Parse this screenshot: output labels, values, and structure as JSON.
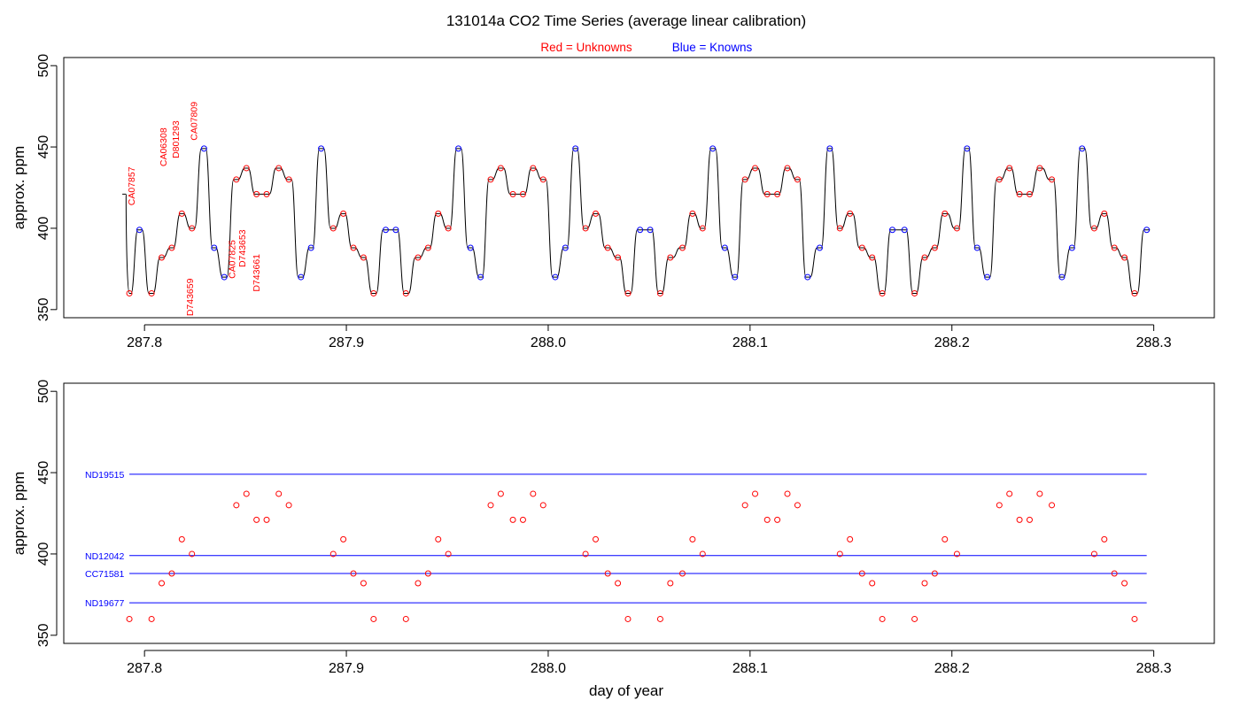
{
  "title": "131014a   CO2 Time Series (average linear calibration)",
  "legend": {
    "red_label": "Red = Unknowns",
    "blue_label": "Blue = Knowns",
    "red_color": "#ff0000",
    "blue_color": "#0000ff"
  },
  "colors": {
    "line": "#000000",
    "axis": "#000000"
  },
  "chart_data": [
    {
      "type": "line",
      "name": "top",
      "title": "",
      "xlabel": "",
      "ylabel": "approx. ppm",
      "xlim": [
        287.76,
        288.33
      ],
      "ylim": [
        345,
        505
      ],
      "x_ticks": [
        287.8,
        287.9,
        288.0,
        288.1,
        288.2,
        288.3
      ],
      "x_tick_labels": [
        "287.8",
        "287.9",
        "288.0",
        "288.1",
        "288.2",
        "288.3"
      ],
      "y_ticks": [
        350,
        400,
        450,
        500
      ],
      "y_tick_labels": [
        "350",
        "400",
        "450",
        "500"
      ],
      "trace_start": [
        287.789,
        421
      ],
      "steps": [
        {
          "x": 287.7925,
          "y": 360,
          "kind": "unknown"
        },
        {
          "x": 287.7975,
          "y": 399,
          "kind": "known"
        },
        {
          "x": 287.8035,
          "y": 360,
          "kind": "unknown"
        },
        {
          "x": 287.8085,
          "y": 382,
          "kind": "unknown"
        },
        {
          "x": 287.8135,
          "y": 388,
          "kind": "unknown"
        },
        {
          "x": 287.8185,
          "y": 409,
          "kind": "unknown"
        },
        {
          "x": 287.8235,
          "y": 400,
          "kind": "unknown"
        },
        {
          "x": 287.8295,
          "y": 449,
          "kind": "known"
        },
        {
          "x": 287.8345,
          "y": 388,
          "kind": "known"
        },
        {
          "x": 287.8395,
          "y": 370,
          "kind": "known"
        },
        {
          "x": 287.8455,
          "y": 430,
          "kind": "unknown"
        },
        {
          "x": 287.8505,
          "y": 437,
          "kind": "unknown"
        },
        {
          "x": 287.8555,
          "y": 421,
          "kind": "unknown"
        },
        {
          "x": 287.8605,
          "y": 421,
          "kind": "unknown"
        },
        {
          "x": 287.8665,
          "y": 437,
          "kind": "unknown"
        },
        {
          "x": 287.8715,
          "y": 430,
          "kind": "unknown"
        },
        {
          "x": 287.8775,
          "y": 370,
          "kind": "known"
        },
        {
          "x": 287.8825,
          "y": 388,
          "kind": "known"
        },
        {
          "x": 287.8875,
          "y": 449,
          "kind": "known"
        },
        {
          "x": 287.8935,
          "y": 400,
          "kind": "unknown"
        },
        {
          "x": 287.8985,
          "y": 409,
          "kind": "unknown"
        },
        {
          "x": 287.9035,
          "y": 388,
          "kind": "unknown"
        },
        {
          "x": 287.9085,
          "y": 382,
          "kind": "unknown"
        },
        {
          "x": 287.9135,
          "y": 360,
          "kind": "unknown"
        },
        {
          "x": 287.9195,
          "y": 399,
          "kind": "known"
        },
        {
          "x": 287.9245,
          "y": 399,
          "kind": "known"
        },
        {
          "x": 287.9295,
          "y": 360,
          "kind": "unknown"
        },
        {
          "x": 287.9355,
          "y": 382,
          "kind": "unknown"
        },
        {
          "x": 287.9405,
          "y": 388,
          "kind": "unknown"
        },
        {
          "x": 287.9455,
          "y": 409,
          "kind": "unknown"
        },
        {
          "x": 287.9505,
          "y": 400,
          "kind": "unknown"
        },
        {
          "x": 287.9555,
          "y": 449,
          "kind": "known"
        },
        {
          "x": 287.9615,
          "y": 388,
          "kind": "known"
        },
        {
          "x": 287.9665,
          "y": 370,
          "kind": "known"
        },
        {
          "x": 287.9715,
          "y": 430,
          "kind": "unknown"
        },
        {
          "x": 287.9765,
          "y": 437,
          "kind": "unknown"
        },
        {
          "x": 287.9825,
          "y": 421,
          "kind": "unknown"
        },
        {
          "x": 287.9875,
          "y": 421,
          "kind": "unknown"
        },
        {
          "x": 287.9925,
          "y": 437,
          "kind": "unknown"
        },
        {
          "x": 287.9975,
          "y": 430,
          "kind": "unknown"
        },
        {
          "x": 288.0035,
          "y": 370,
          "kind": "known"
        },
        {
          "x": 288.0085,
          "y": 388,
          "kind": "known"
        },
        {
          "x": 288.0135,
          "y": 449,
          "kind": "known"
        },
        {
          "x": 288.0185,
          "y": 400,
          "kind": "unknown"
        },
        {
          "x": 288.0235,
          "y": 409,
          "kind": "unknown"
        },
        {
          "x": 288.0295,
          "y": 388,
          "kind": "unknown"
        },
        {
          "x": 288.0345,
          "y": 382,
          "kind": "unknown"
        },
        {
          "x": 288.0395,
          "y": 360,
          "kind": "unknown"
        },
        {
          "x": 288.0455,
          "y": 399,
          "kind": "known"
        },
        {
          "x": 288.0505,
          "y": 399,
          "kind": "known"
        },
        {
          "x": 288.0555,
          "y": 360,
          "kind": "unknown"
        },
        {
          "x": 288.0605,
          "y": 382,
          "kind": "unknown"
        },
        {
          "x": 288.0665,
          "y": 388,
          "kind": "unknown"
        },
        {
          "x": 288.0715,
          "y": 409,
          "kind": "unknown"
        },
        {
          "x": 288.0765,
          "y": 400,
          "kind": "unknown"
        },
        {
          "x": 288.0815,
          "y": 449,
          "kind": "known"
        },
        {
          "x": 288.0875,
          "y": 388,
          "kind": "known"
        },
        {
          "x": 288.0925,
          "y": 370,
          "kind": "known"
        },
        {
          "x": 288.0975,
          "y": 430,
          "kind": "unknown"
        },
        {
          "x": 288.1025,
          "y": 437,
          "kind": "unknown"
        },
        {
          "x": 288.1085,
          "y": 421,
          "kind": "unknown"
        },
        {
          "x": 288.1135,
          "y": 421,
          "kind": "unknown"
        },
        {
          "x": 288.1185,
          "y": 437,
          "kind": "unknown"
        },
        {
          "x": 288.1235,
          "y": 430,
          "kind": "unknown"
        },
        {
          "x": 288.1285,
          "y": 370,
          "kind": "known"
        },
        {
          "x": 288.1345,
          "y": 388,
          "kind": "known"
        },
        {
          "x": 288.1395,
          "y": 449,
          "kind": "known"
        },
        {
          "x": 288.1445,
          "y": 400,
          "kind": "unknown"
        },
        {
          "x": 288.1495,
          "y": 409,
          "kind": "unknown"
        },
        {
          "x": 288.1555,
          "y": 388,
          "kind": "unknown"
        },
        {
          "x": 288.1605,
          "y": 382,
          "kind": "unknown"
        },
        {
          "x": 288.1655,
          "y": 360,
          "kind": "unknown"
        },
        {
          "x": 288.1705,
          "y": 399,
          "kind": "known"
        },
        {
          "x": 288.1765,
          "y": 399,
          "kind": "known"
        },
        {
          "x": 288.1815,
          "y": 360,
          "kind": "unknown"
        },
        {
          "x": 288.1865,
          "y": 382,
          "kind": "unknown"
        },
        {
          "x": 288.1915,
          "y": 388,
          "kind": "unknown"
        },
        {
          "x": 288.1965,
          "y": 409,
          "kind": "unknown"
        },
        {
          "x": 288.2025,
          "y": 400,
          "kind": "unknown"
        },
        {
          "x": 288.2075,
          "y": 449,
          "kind": "known"
        },
        {
          "x": 288.2125,
          "y": 388,
          "kind": "known"
        },
        {
          "x": 288.2175,
          "y": 370,
          "kind": "known"
        },
        {
          "x": 288.2235,
          "y": 430,
          "kind": "unknown"
        },
        {
          "x": 288.2285,
          "y": 437,
          "kind": "unknown"
        },
        {
          "x": 288.2335,
          "y": 421,
          "kind": "unknown"
        },
        {
          "x": 288.2385,
          "y": 421,
          "kind": "unknown"
        },
        {
          "x": 288.2435,
          "y": 437,
          "kind": "unknown"
        },
        {
          "x": 288.2495,
          "y": 430,
          "kind": "unknown"
        },
        {
          "x": 288.2545,
          "y": 370,
          "kind": "known"
        },
        {
          "x": 288.2595,
          "y": 388,
          "kind": "known"
        },
        {
          "x": 288.2645,
          "y": 449,
          "kind": "known"
        },
        {
          "x": 288.2705,
          "y": 400,
          "kind": "unknown"
        },
        {
          "x": 288.2755,
          "y": 409,
          "kind": "unknown"
        },
        {
          "x": 288.2805,
          "y": 388,
          "kind": "unknown"
        },
        {
          "x": 288.2855,
          "y": 382,
          "kind": "unknown"
        },
        {
          "x": 288.2905,
          "y": 360,
          "kind": "unknown"
        },
        {
          "x": 288.2965,
          "y": 399,
          "kind": "known"
        }
      ],
      "annotations": [
        {
          "text": "CA07857",
          "x": 287.795,
          "y": 414
        },
        {
          "text": "CA06308",
          "x": 287.811,
          "y": 438
        },
        {
          "text": "D801293",
          "x": 287.817,
          "y": 443
        },
        {
          "text": "CA07809",
          "x": 287.826,
          "y": 454
        },
        {
          "text": "D743659",
          "x": 287.824,
          "y": 346
        },
        {
          "text": "CA07825",
          "x": 287.845,
          "y": 369
        },
        {
          "text": "D743653",
          "x": 287.85,
          "y": 376
        },
        {
          "text": "D743661",
          "x": 287.857,
          "y": 361
        }
      ]
    },
    {
      "type": "scatter",
      "name": "bottom",
      "title": "",
      "xlabel": "day of year",
      "ylabel": "approx. ppm",
      "xlim": [
        287.76,
        288.33
      ],
      "ylim": [
        345,
        505
      ],
      "x_ticks": [
        287.8,
        287.9,
        288.0,
        288.1,
        288.2,
        288.3
      ],
      "x_tick_labels": [
        "287.8",
        "287.9",
        "288.0",
        "288.1",
        "288.2",
        "288.3"
      ],
      "y_ticks": [
        350,
        400,
        450,
        500
      ],
      "y_tick_labels": [
        "350",
        "400",
        "450",
        "500"
      ],
      "reference_lines": [
        {
          "label": "ND19515",
          "y": 449,
          "x_start": 287.7925,
          "x_end": 288.2965
        },
        {
          "label": "ND12042",
          "y": 399,
          "x_start": 287.7925,
          "x_end": 288.2965
        },
        {
          "label": "CC71581",
          "y": 388,
          "x_start": 287.7925,
          "x_end": 288.2965
        },
        {
          "label": "ND19677",
          "y": 370,
          "x_start": 287.7925,
          "x_end": 288.2965
        }
      ],
      "unknowns": {
        "x": [
          287.7925,
          287.8035,
          287.8085,
          287.8135,
          287.8185,
          287.8235,
          287.8455,
          287.8505,
          287.8555,
          287.8605,
          287.8665,
          287.8715,
          287.8935,
          287.8985,
          287.9035,
          287.9085,
          287.9135,
          287.9295,
          287.9355,
          287.9405,
          287.9455,
          287.9505,
          287.9715,
          287.9765,
          287.9825,
          287.9875,
          287.9925,
          287.9975,
          288.0185,
          288.0235,
          288.0295,
          288.0345,
          288.0395,
          288.0555,
          288.0605,
          288.0665,
          288.0715,
          288.0765,
          288.0975,
          288.1025,
          288.1085,
          288.1135,
          288.1185,
          288.1235,
          288.1445,
          288.1495,
          288.1555,
          288.1605,
          288.1655,
          288.1815,
          288.1865,
          288.1915,
          288.1965,
          288.2025,
          288.2235,
          288.2285,
          288.2335,
          288.2385,
          288.2435,
          288.2495,
          288.2705,
          288.2755,
          288.2805,
          288.2855,
          288.2905
        ],
        "y": [
          360,
          360,
          382,
          388,
          409,
          400,
          430,
          437,
          421,
          421,
          437,
          430,
          400,
          409,
          388,
          382,
          360,
          360,
          382,
          388,
          409,
          400,
          430,
          437,
          421,
          421,
          437,
          430,
          400,
          409,
          388,
          382,
          360,
          360,
          382,
          388,
          409,
          400,
          430,
          437,
          421,
          421,
          437,
          430,
          400,
          409,
          388,
          382,
          360,
          360,
          382,
          388,
          409,
          400,
          430,
          437,
          421,
          421,
          437,
          430,
          400,
          409,
          388,
          382,
          360
        ]
      }
    }
  ]
}
